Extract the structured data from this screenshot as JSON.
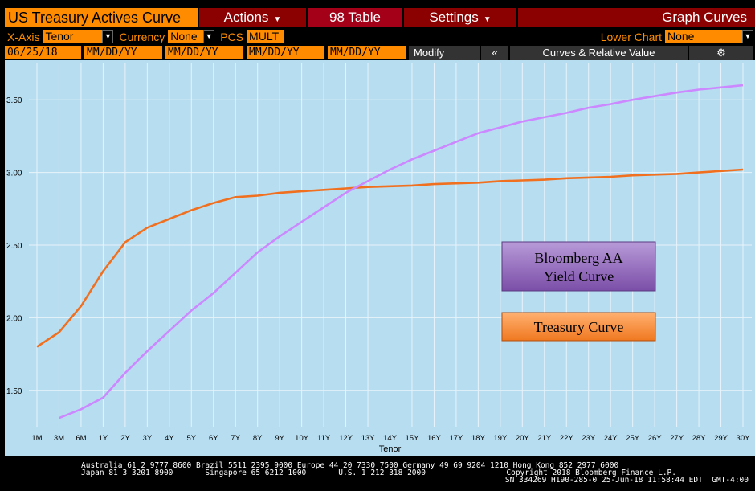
{
  "toolbar": {
    "title": "US Treasury Actives Curve",
    "actions": "Actions",
    "table_prefix": "98",
    "table": "Table",
    "settings": "Settings",
    "graph_curves": "Graph Curves"
  },
  "controls": {
    "xaxis_label": "X-Axis",
    "xaxis_value": "Tenor",
    "currency_label": "Currency",
    "currency_value": "None",
    "pcs_label": "PCS",
    "pcs_value": "MULT",
    "lower_chart_label": "Lower Chart",
    "lower_chart_value": "None"
  },
  "dates": {
    "d1": "06/25/18",
    "d2": "MM/DD/YY",
    "d3": "MM/DD/YY",
    "d4": "MM/DD/YY",
    "d5": "MM/DD/YY",
    "modify": "Modify",
    "collapse": "«",
    "curves_rv": "Curves & Relative Value",
    "gear": "⚙"
  },
  "colors": {
    "plot_bg": "#b7ddf0",
    "grid": "#e8f3fa",
    "treasury": "#f07020",
    "aa": "#cc88ff",
    "accent": "#ff8c00"
  },
  "chart_data": {
    "type": "line",
    "xlabel": "Tenor",
    "ylabel": "",
    "title": "",
    "ylim": [
      1.25,
      3.75
    ],
    "yticks": [
      "1.50",
      "2.00",
      "2.50",
      "3.00",
      "3.50"
    ],
    "categories": [
      "1M",
      "3M",
      "6M",
      "1Y",
      "2Y",
      "3Y",
      "4Y",
      "5Y",
      "6Y",
      "7Y",
      "8Y",
      "9Y",
      "10Y",
      "11Y",
      "12Y",
      "13Y",
      "14Y",
      "15Y",
      "16Y",
      "17Y",
      "18Y",
      "19Y",
      "20Y",
      "21Y",
      "22Y",
      "23Y",
      "24Y",
      "25Y",
      "26Y",
      "27Y",
      "28Y",
      "29Y",
      "30Y"
    ],
    "series": [
      {
        "name": "Treasury Curve",
        "values": [
          1.8,
          1.9,
          2.08,
          2.32,
          2.52,
          2.62,
          2.68,
          2.74,
          2.79,
          2.83,
          2.84,
          2.86,
          2.87,
          2.88,
          2.89,
          2.9,
          2.905,
          2.91,
          2.92,
          2.925,
          2.93,
          2.94,
          2.945,
          2.95,
          2.96,
          2.965,
          2.97,
          2.98,
          2.985,
          2.99,
          3.0,
          3.01,
          3.02
        ]
      },
      {
        "name": "Bloomberg AA Yield Curve",
        "values": [
          null,
          1.31,
          1.37,
          1.45,
          1.62,
          1.77,
          1.91,
          2.05,
          2.17,
          2.31,
          2.45,
          2.56,
          2.66,
          2.76,
          2.86,
          2.94,
          3.02,
          3.09,
          3.15,
          3.21,
          3.27,
          3.31,
          3.35,
          3.38,
          3.41,
          3.445,
          3.47,
          3.5,
          3.525,
          3.55,
          3.57,
          3.585,
          3.6
        ]
      }
    ],
    "legend": [
      {
        "label_line1": "Bloomberg AA",
        "label_line2": "Yield Curve"
      },
      {
        "label_line1": "Treasury Curve",
        "label_line2": ""
      }
    ]
  },
  "footer": {
    "line1": "Australia 61 2 9777 8600 Brazil 5511 2395 9000 Europe 44 20 7330 7500 Germany 49 69 9204 1210 Hong Kong 852 2977 6000",
    "line2": "Japan 81 3 3201 8900       Singapore 65 6212 1000       U.S. 1 212 318 2000",
    "copyright": "Copyright 2018 Bloomberg Finance L.P.",
    "sn": "SN 334269 H190-285-0 25-Jun-18 11:58:44 EDT  GMT-4:00"
  }
}
